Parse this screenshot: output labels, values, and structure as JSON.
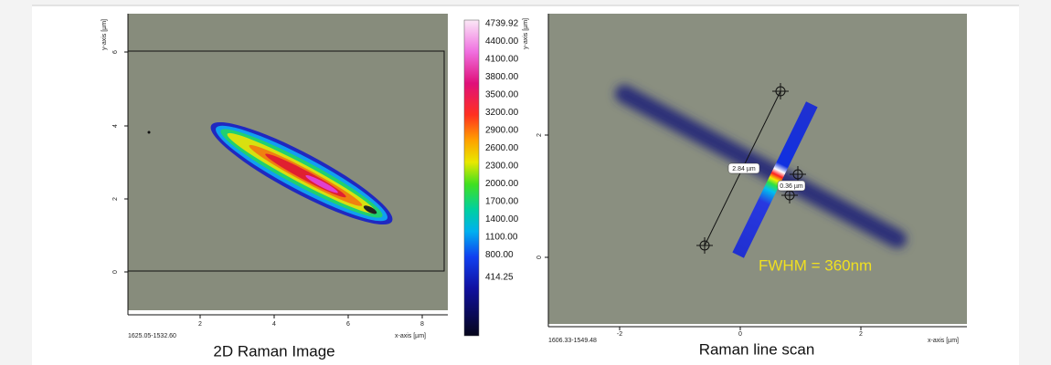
{
  "left_panel": {
    "caption": "2D Raman Image",
    "y_axis_label": "y-axis [µm]",
    "x_axis_label": "x-axis [µm]",
    "coords": "1625.05-1532.60",
    "x_ticks": [
      "2",
      "4",
      "6",
      "8"
    ],
    "y_ticks": [
      "6",
      "4",
      "2",
      "0"
    ]
  },
  "colorbar": {
    "labels": [
      "4739.92",
      "4400.00",
      "4100.00",
      "3800.00",
      "3500.00",
      "3200.00",
      "2900.00",
      "2600.00",
      "2300.00",
      "2000.00",
      "1700.00",
      "1400.00",
      "1100.00",
      "800.00",
      "414.25"
    ]
  },
  "right_panel": {
    "caption": "Raman line scan",
    "annotation": "FWHM = 360nm",
    "length_label": "2.84 µm",
    "width_label": "0.36 µm",
    "y_axis_label": "y-axis [µm]",
    "x_axis_label": "x-axis [µm]",
    "coords": "1606.33-1549.48",
    "x_ticks": [
      "-2",
      "0",
      "2"
    ],
    "y_ticks": [
      "2",
      "0"
    ]
  }
}
